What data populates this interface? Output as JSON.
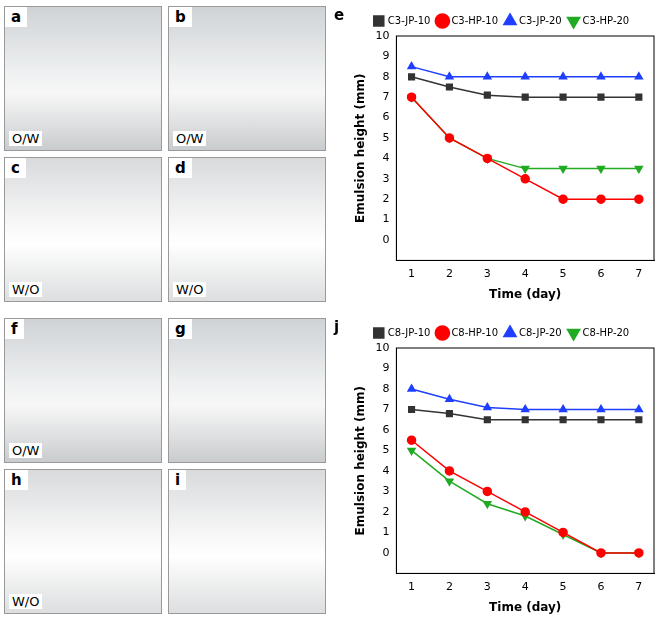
{
  "panels": [
    {
      "letter": "a",
      "label": "O/W"
    },
    {
      "letter": "b",
      "label": "O/W"
    },
    {
      "letter": "c",
      "label": "W/O"
    },
    {
      "letter": "d",
      "label": "W/O"
    },
    {
      "letter": "f",
      "label": "O/W"
    },
    {
      "letter": "g"
    },
    {
      "letter": "h",
      "label": "W/O"
    },
    {
      "letter": "i"
    }
  ],
  "chart_data": [
    {
      "letter": "e",
      "type": "line",
      "x_label": "Time (day)",
      "y_label": "Emulsion height (mm)",
      "x": [
        1,
        2,
        3,
        4,
        5,
        6,
        7
      ],
      "xlim": [
        0.6,
        7.4
      ],
      "xticks": [
        1,
        2,
        3,
        4,
        5,
        6,
        7
      ],
      "ylim": [
        -1,
        10
      ],
      "yticks": [
        0,
        1,
        2,
        3,
        4,
        5,
        6,
        7,
        8,
        9,
        10
      ],
      "grid": false,
      "legend": "top",
      "series": [
        {
          "name": "C3-JP-10",
          "color": "#333333",
          "marker": "square",
          "values": [
            8,
            7.5,
            7.1,
            7,
            7,
            7,
            7
          ]
        },
        {
          "name": "C3-HP-10",
          "color": "#ff0000",
          "marker": "circle",
          "values": [
            7,
            5,
            4,
            3,
            2,
            2,
            2
          ]
        },
        {
          "name": "C3-JP-20",
          "color": "#1f3fff",
          "marker": "triangle",
          "values": [
            8.5,
            8,
            8,
            8,
            8,
            8,
            8
          ]
        },
        {
          "name": "C3-HP-20",
          "color": "#22aa22",
          "marker": "triangle-down",
          "values": [
            7,
            5,
            4,
            3.5,
            3.5,
            3.5,
            3.5
          ]
        }
      ]
    },
    {
      "letter": "j",
      "type": "line",
      "x_label": "Time (day)",
      "y_label": "Emulsion height (mm)",
      "x": [
        1,
        2,
        3,
        4,
        5,
        6,
        7
      ],
      "xlim": [
        0.6,
        7.4
      ],
      "xticks": [
        1,
        2,
        3,
        4,
        5,
        6,
        7
      ],
      "ylim": [
        -1,
        10
      ],
      "yticks": [
        0,
        1,
        2,
        3,
        4,
        5,
        6,
        7,
        8,
        9,
        10
      ],
      "grid": false,
      "legend": "top",
      "series": [
        {
          "name": "C8-JP-10",
          "color": "#333333",
          "marker": "square",
          "values": [
            7,
            6.8,
            6.5,
            6.5,
            6.5,
            6.5,
            6.5
          ]
        },
        {
          "name": "C8-HP-10",
          "color": "#ff0000",
          "marker": "circle",
          "values": [
            5.5,
            4,
            3,
            2,
            1,
            0,
            0
          ]
        },
        {
          "name": "C8-JP-20",
          "color": "#1f3fff",
          "marker": "triangle",
          "values": [
            8,
            7.5,
            7.1,
            7,
            7,
            7,
            7
          ]
        },
        {
          "name": "C8-HP-20",
          "color": "#22aa22",
          "marker": "triangle-down",
          "values": [
            5,
            3.5,
            2.4,
            1.8,
            0.9,
            0,
            0
          ]
        }
      ]
    }
  ]
}
